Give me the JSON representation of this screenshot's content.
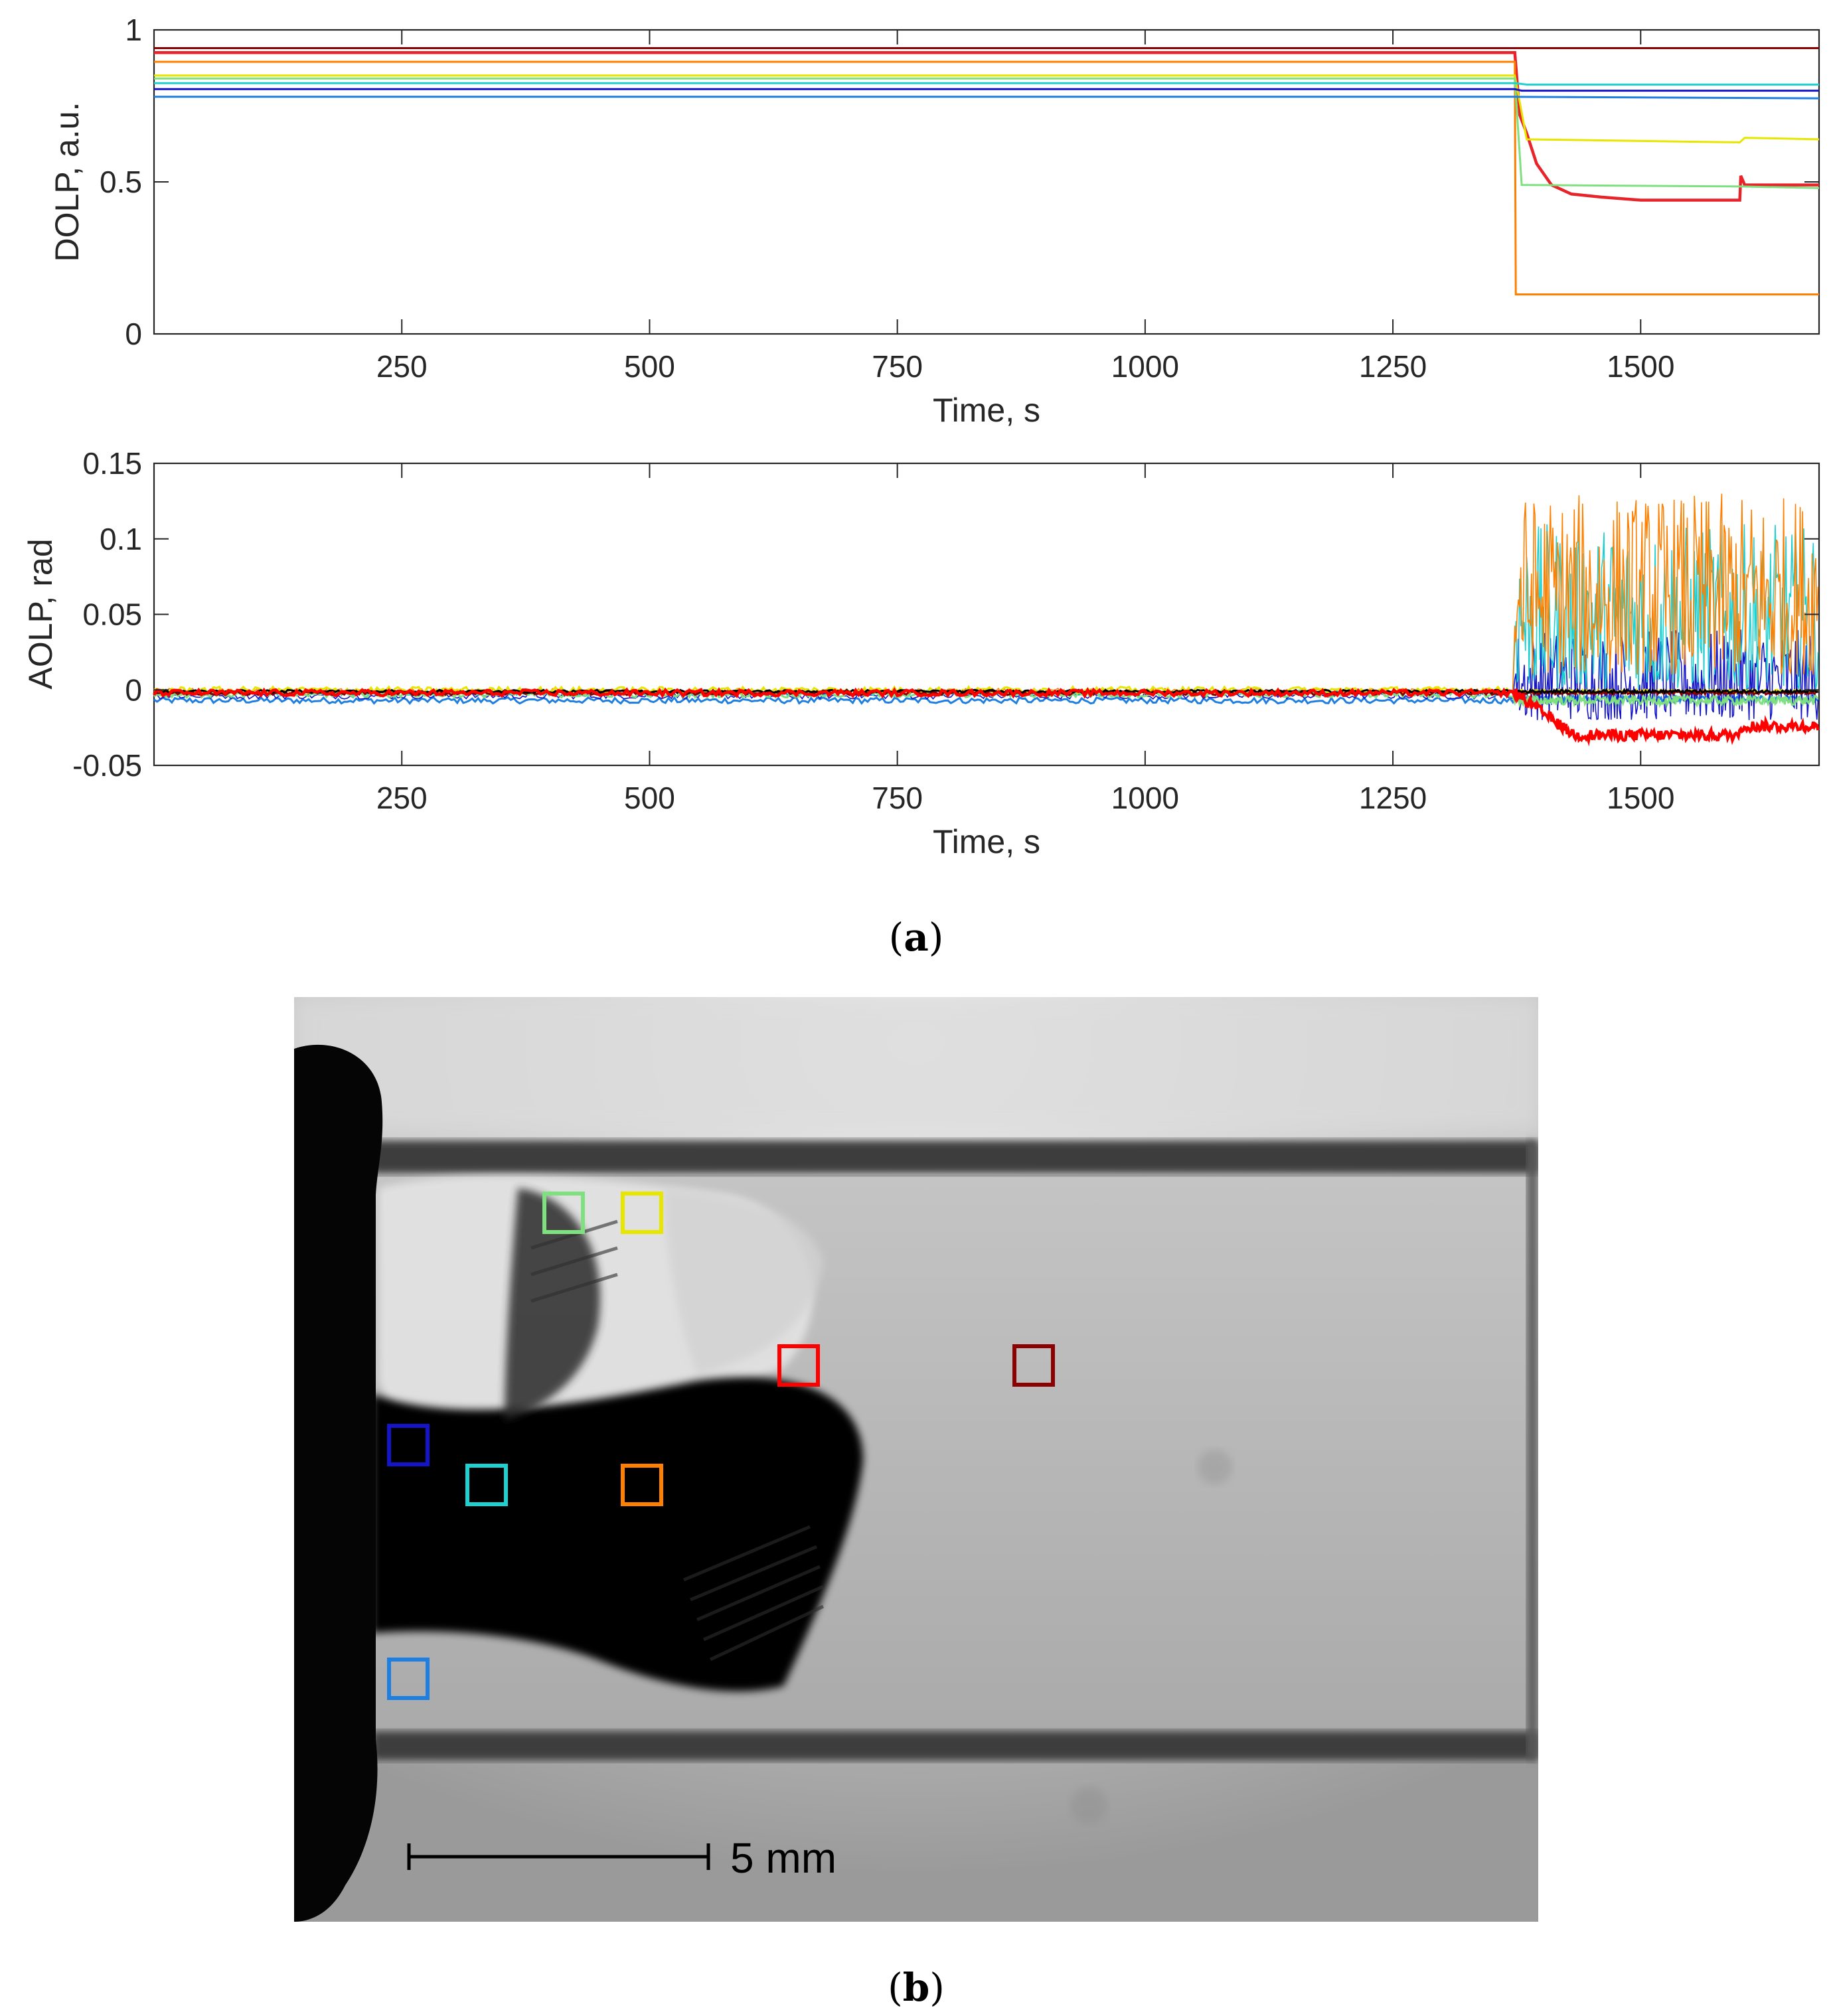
{
  "chart_data": [
    {
      "type": "line",
      "panel": "top",
      "xlabel": "Time, s",
      "ylabel": "DOLP, a.u.",
      "xlim": [
        0,
        1680
      ],
      "ylim": [
        0,
        1
      ],
      "xticks": [
        250,
        500,
        750,
        1000,
        1250,
        1500
      ],
      "yticks": [
        0,
        0.5,
        1
      ],
      "ytick_labels": [
        "0",
        "0.5",
        "1"
      ],
      "grid": false,
      "event_time": 1373,
      "series": [
        {
          "color": "#8B0000",
          "points": [
            [
              0,
              0.94
            ],
            [
              1373,
              0.94
            ],
            [
              1680,
              0.94
            ]
          ]
        },
        {
          "color": "#E8242A",
          "points": [
            [
              0,
              0.925
            ],
            [
              1373,
              0.925
            ],
            [
              1378,
              0.72
            ],
            [
              1385,
              0.66
            ],
            [
              1395,
              0.56
            ],
            [
              1410,
              0.49
            ],
            [
              1430,
              0.46
            ],
            [
              1460,
              0.45
            ],
            [
              1500,
              0.44
            ],
            [
              1550,
              0.44
            ],
            [
              1600,
              0.44
            ],
            [
              1601,
              0.52
            ],
            [
              1605,
              0.49
            ],
            [
              1680,
              0.49
            ]
          ]
        },
        {
          "color": "#FF8000",
          "points": [
            [
              0,
              0.895
            ],
            [
              1373,
              0.895
            ],
            [
              1374,
              0.13
            ],
            [
              1680,
              0.13
            ]
          ]
        },
        {
          "color": "#E6E600",
          "points": [
            [
              0,
              0.85
            ],
            [
              1373,
              0.85
            ],
            [
              1385,
              0.64
            ],
            [
              1600,
              0.63
            ],
            [
              1605,
              0.645
            ],
            [
              1680,
              0.64
            ]
          ]
        },
        {
          "color": "#7FE07F",
          "points": [
            [
              0,
              0.84
            ],
            [
              1373,
              0.84
            ],
            [
              1380,
              0.49
            ],
            [
              1600,
              0.485
            ],
            [
              1680,
              0.48
            ]
          ]
        },
        {
          "color": "#1FD0D0",
          "points": [
            [
              0,
              0.825
            ],
            [
              1373,
              0.825
            ],
            [
              1385,
              0.82
            ],
            [
              1680,
              0.82
            ]
          ]
        },
        {
          "color": "#1414C8",
          "points": [
            [
              0,
              0.805
            ],
            [
              1373,
              0.805
            ],
            [
              1380,
              0.8
            ],
            [
              1680,
              0.8
            ]
          ]
        },
        {
          "color": "#1E7FE0",
          "points": [
            [
              0,
              0.78
            ],
            [
              1373,
              0.78
            ],
            [
              1680,
              0.775
            ]
          ]
        }
      ]
    },
    {
      "type": "line",
      "panel": "bottom",
      "xlabel": "Time, s",
      "ylabel": "AOLP, rad",
      "xlim": [
        0,
        1680
      ],
      "ylim": [
        -0.05,
        0.15
      ],
      "xticks": [
        250,
        500,
        750,
        1000,
        1250,
        1500
      ],
      "yticks": [
        -0.05,
        0,
        0.05,
        0.1,
        0.15
      ],
      "ytick_labels": [
        "-0.05",
        "0",
        "0.05",
        "0.1",
        "0.15"
      ],
      "grid": false,
      "event_time": 1373,
      "series": [
        {
          "color": "#1E7FE0",
          "baseline": -0.007,
          "after_low": -0.008,
          "after_high": -0.004,
          "noise": 0.002
        },
        {
          "color": "#1414C8",
          "baseline": -0.004,
          "after_low": -0.02,
          "after_high": 0.04,
          "noise": 0.002
        },
        {
          "color": "#1FD0D0",
          "baseline": -0.002,
          "after_low": 0.0,
          "after_high": 0.11,
          "noise": 0.002
        },
        {
          "color": "#FF8000",
          "baseline": -0.001,
          "after_low": 0.01,
          "after_high": 0.13,
          "noise": 0.002
        },
        {
          "color": "#7FE07F",
          "baseline": -0.003,
          "after_low": -0.01,
          "after_high": -0.004,
          "noise": 0.002
        },
        {
          "color": "#E6E600",
          "baseline": 0.0,
          "after_low": -0.002,
          "after_high": 0.0,
          "noise": 0.002
        },
        {
          "color": "#8B0000",
          "baseline": -0.002,
          "after_low": -0.003,
          "after_high": -0.001,
          "noise": 0.0015
        },
        {
          "color": "#000000",
          "baseline": -0.001,
          "after_low": -0.002,
          "after_high": 0.0,
          "noise": 0.001
        },
        {
          "color": "#FF0000",
          "baseline": -0.002,
          "after_low": -0.036,
          "after_high": -0.024,
          "noise": 0.002
        }
      ]
    }
  ],
  "panel_labels": {
    "a": "a",
    "b": "b"
  },
  "photo": {
    "scale_bar_label": "5 mm",
    "roi_markers": [
      {
        "color": "#7FE07F"
      },
      {
        "color": "#E6E600"
      },
      {
        "color": "#FF0000"
      },
      {
        "color": "#8B0000"
      },
      {
        "color": "#1414C8"
      },
      {
        "color": "#1FD0D0"
      },
      {
        "color": "#FF8000"
      },
      {
        "color": "#1E7FE0"
      }
    ]
  }
}
